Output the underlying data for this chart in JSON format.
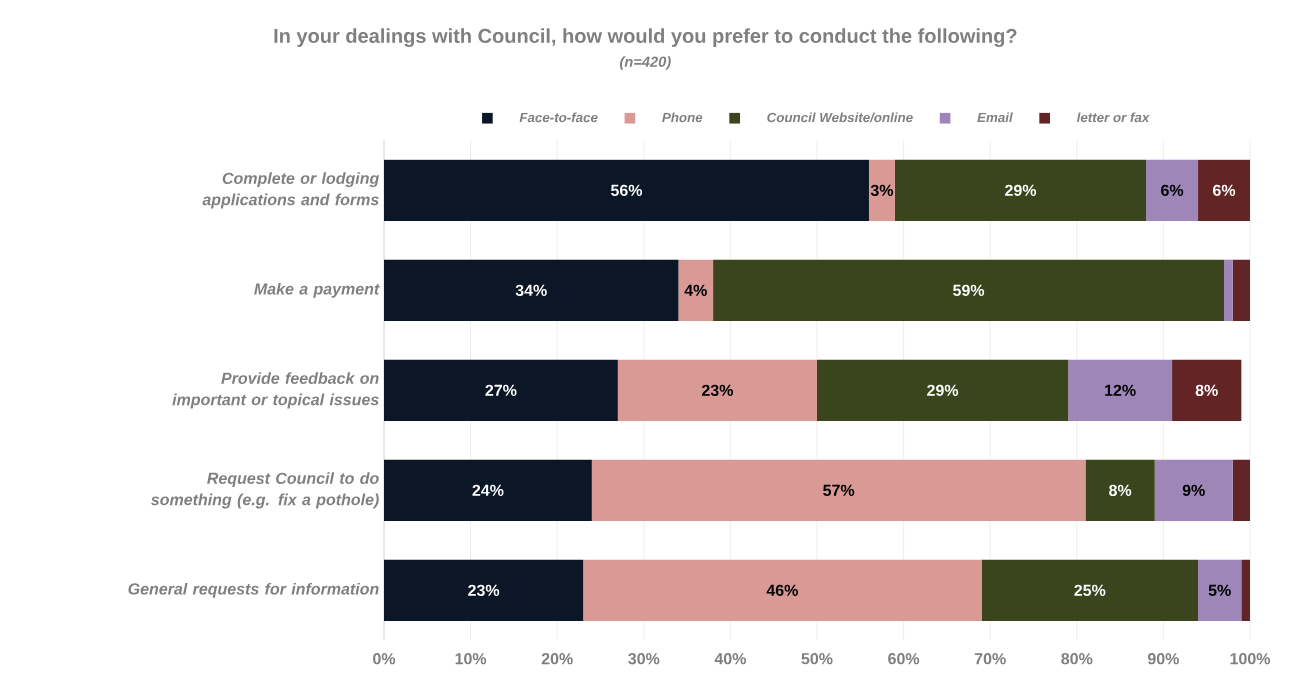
{
  "chart_data": {
    "type": "bar",
    "orientation": "horizontal",
    "stacked": true,
    "title": "In your dealings with Council, how would you prefer to conduct the following?",
    "subtitle": "(n=420)",
    "categories": [
      "Complete or lodging applications and forms",
      "Make a payment",
      "Provide feedback on important or topical issues",
      "Request Council to do something (e.g. fix a pothole)",
      "General requests for information"
    ],
    "series": [
      {
        "name": "Face-to-face",
        "color": "#0b1726",
        "values": [
          56,
          34,
          27,
          24,
          23
        ],
        "value_labels": [
          "56%",
          "34%",
          "27%",
          "24%",
          "23%"
        ]
      },
      {
        "name": "Phone",
        "color": "#d99a96",
        "values": [
          3,
          4,
          23,
          57,
          46
        ],
        "value_labels": [
          "3%",
          "4%",
          "23%",
          "57%",
          "46%"
        ]
      },
      {
        "name": "Council Website/online",
        "color": "#3a441d",
        "values": [
          29,
          59,
          29,
          8,
          25
        ],
        "value_labels": [
          "29%",
          "59%",
          "29%",
          "8%",
          "25%"
        ]
      },
      {
        "name": "Email",
        "color": "#9f86b8",
        "values": [
          6,
          1,
          12,
          9,
          5
        ],
        "value_labels": [
          "6%",
          null,
          "12%",
          "9%",
          "5%"
        ]
      },
      {
        "name": "letter or fax",
        "color": "#632426",
        "values": [
          6,
          2,
          8,
          2,
          1
        ],
        "value_labels": [
          "6%",
          null,
          "8%",
          null,
          null
        ]
      }
    ],
    "xlim": [
      0,
      100
    ],
    "xticks": [
      {
        "value": 0,
        "label": "0%"
      },
      {
        "value": 10,
        "label": "10%"
      },
      {
        "value": 20,
        "label": "20%"
      },
      {
        "value": 30,
        "label": "30%"
      },
      {
        "value": 40,
        "label": "40%"
      },
      {
        "value": 50,
        "label": "50%"
      },
      {
        "value": 60,
        "label": "60%"
      },
      {
        "value": 70,
        "label": "70%"
      },
      {
        "value": 80,
        "label": "80%"
      },
      {
        "value": 90,
        "label": "90%"
      },
      {
        "value": 100,
        "label": "100%"
      }
    ],
    "grid": "x",
    "legend": "top"
  }
}
